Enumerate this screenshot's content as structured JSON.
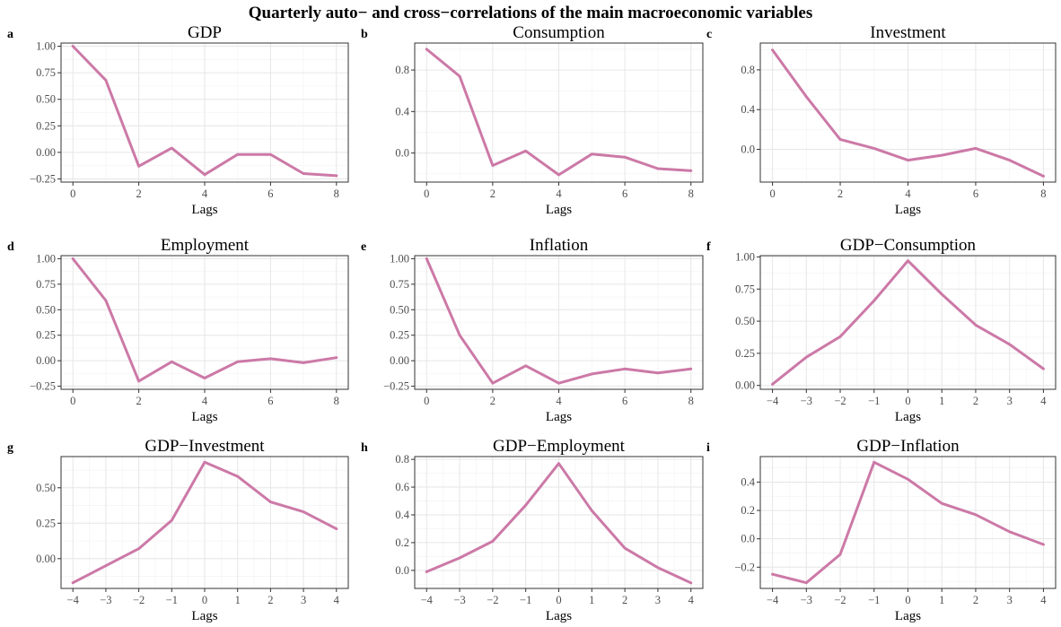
{
  "title": "Quarterly auto− and cross−correlations of the main macroeconomic variables",
  "line_color": "#cc79a7",
  "chart_data": [
    {
      "panel": "a",
      "type": "line",
      "title": "GDP",
      "xlabel": "Lags",
      "ylabel": "",
      "x": [
        0,
        1,
        2,
        3,
        4,
        5,
        6,
        7,
        8
      ],
      "values": [
        1.0,
        0.68,
        -0.13,
        0.04,
        -0.21,
        -0.02,
        -0.02,
        -0.2,
        -0.22
      ],
      "xticks": [
        0,
        2,
        4,
        6,
        8
      ],
      "xtick_labels": [
        "0",
        "2",
        "4",
        "6",
        "8"
      ],
      "yticks": [
        -0.25,
        0,
        0.25,
        0.5,
        0.75,
        1.0
      ],
      "ytick_labels": [
        "−0.25",
        "0.00",
        "0.25",
        "0.50",
        "0.75",
        "1.00"
      ],
      "ylim": [
        -0.28,
        1.03
      ],
      "grid": true
    },
    {
      "panel": "b",
      "type": "line",
      "title": "Consumption",
      "xlabel": "Lags",
      "ylabel": "",
      "x": [
        0,
        1,
        2,
        3,
        4,
        5,
        6,
        7,
        8
      ],
      "values": [
        1.0,
        0.74,
        -0.12,
        0.02,
        -0.21,
        -0.01,
        -0.04,
        -0.15,
        -0.17
      ],
      "xticks": [
        0,
        2,
        4,
        6,
        8
      ],
      "xtick_labels": [
        "0",
        "2",
        "4",
        "6",
        "8"
      ],
      "yticks": [
        0,
        0.4,
        0.8
      ],
      "ytick_labels": [
        "0.0",
        "0.4",
        "0.8"
      ],
      "ylim": [
        -0.28,
        1.06
      ],
      "grid": true
    },
    {
      "panel": "c",
      "type": "line",
      "title": "Investment",
      "xlabel": "Lags",
      "ylabel": "",
      "x": [
        0,
        1,
        2,
        3,
        4,
        5,
        6,
        7,
        8
      ],
      "values": [
        1.0,
        0.53,
        0.1,
        0.01,
        -0.11,
        -0.06,
        0.01,
        -0.11,
        -0.27
      ],
      "xticks": [
        0,
        2,
        4,
        6,
        8
      ],
      "xtick_labels": [
        "0",
        "2",
        "4",
        "6",
        "8"
      ],
      "yticks": [
        0,
        0.4,
        0.8
      ],
      "ytick_labels": [
        "0.0",
        "0.4",
        "0.8"
      ],
      "ylim": [
        -0.33,
        1.07
      ],
      "grid": true
    },
    {
      "panel": "d",
      "type": "line",
      "title": "Employment",
      "xlabel": "Lags",
      "ylabel": "",
      "x": [
        0,
        1,
        2,
        3,
        4,
        5,
        6,
        7,
        8
      ],
      "values": [
        1.0,
        0.59,
        -0.2,
        -0.01,
        -0.17,
        -0.01,
        0.02,
        -0.02,
        0.03
      ],
      "xticks": [
        0,
        2,
        4,
        6,
        8
      ],
      "xtick_labels": [
        "0",
        "2",
        "4",
        "6",
        "8"
      ],
      "yticks": [
        -0.25,
        0,
        0.25,
        0.5,
        0.75,
        1.0
      ],
      "ytick_labels": [
        "−0.25",
        "0.00",
        "0.25",
        "0.50",
        "0.75",
        "1.00"
      ],
      "ylim": [
        -0.28,
        1.03
      ],
      "grid": true
    },
    {
      "panel": "e",
      "type": "line",
      "title": "Inflation",
      "xlabel": "Lags",
      "ylabel": "",
      "x": [
        0,
        1,
        2,
        3,
        4,
        5,
        6,
        7,
        8
      ],
      "values": [
        1.0,
        0.25,
        -0.22,
        -0.05,
        -0.22,
        -0.13,
        -0.08,
        -0.12,
        -0.08
      ],
      "xticks": [
        0,
        2,
        4,
        6,
        8
      ],
      "xtick_labels": [
        "0",
        "2",
        "4",
        "6",
        "8"
      ],
      "yticks": [
        -0.25,
        0,
        0.25,
        0.5,
        0.75,
        1.0
      ],
      "ytick_labels": [
        "−0.25",
        "0.00",
        "0.25",
        "0.50",
        "0.75",
        "1.00"
      ],
      "ylim": [
        -0.28,
        1.03
      ],
      "grid": true
    },
    {
      "panel": "f",
      "type": "line",
      "title": "GDP−Consumption",
      "xlabel": "Lags",
      "ylabel": "",
      "x": [
        -4,
        -3,
        -2,
        -1,
        0,
        1,
        2,
        3,
        4
      ],
      "values": [
        0.01,
        0.22,
        0.38,
        0.66,
        0.97,
        0.71,
        0.47,
        0.32,
        0.13
      ],
      "xticks": [
        -4,
        -3,
        -2,
        -1,
        0,
        1,
        2,
        3,
        4
      ],
      "xtick_labels": [
        "−4",
        "−3",
        "−2",
        "−1",
        "0",
        "1",
        "2",
        "3",
        "4"
      ],
      "yticks": [
        0,
        0.25,
        0.5,
        0.75,
        1.0
      ],
      "ytick_labels": [
        "0.00",
        "0.25",
        "0.50",
        "0.75",
        "1.00"
      ],
      "ylim": [
        -0.03,
        1.01
      ],
      "grid": true
    },
    {
      "panel": "g",
      "type": "line",
      "title": "GDP−Investment",
      "xlabel": "Lags",
      "ylabel": "",
      "x": [
        -4,
        -3,
        -2,
        -1,
        0,
        1,
        2,
        3,
        4
      ],
      "values": [
        -0.17,
        -0.05,
        0.07,
        0.27,
        0.68,
        0.58,
        0.4,
        0.33,
        0.21
      ],
      "xticks": [
        -4,
        -3,
        -2,
        -1,
        0,
        1,
        2,
        3,
        4
      ],
      "xtick_labels": [
        "−4",
        "−3",
        "−2",
        "−1",
        "0",
        "1",
        "2",
        "3",
        "4"
      ],
      "yticks": [
        0,
        0.25,
        0.5
      ],
      "ytick_labels": [
        "0.00",
        "0.25",
        "0.50"
      ],
      "ylim": [
        -0.21,
        0.72
      ],
      "grid": true
    },
    {
      "panel": "h",
      "type": "line",
      "title": "GDP−Employment",
      "xlabel": "Lags",
      "ylabel": "",
      "x": [
        -4,
        -3,
        -2,
        -1,
        0,
        1,
        2,
        3,
        4
      ],
      "values": [
        -0.01,
        0.09,
        0.21,
        0.47,
        0.77,
        0.43,
        0.16,
        0.02,
        -0.09
      ],
      "xticks": [
        -4,
        -3,
        -2,
        -1,
        0,
        1,
        2,
        3,
        4
      ],
      "xtick_labels": [
        "−4",
        "−3",
        "−2",
        "−1",
        "0",
        "1",
        "2",
        "3",
        "4"
      ],
      "yticks": [
        0,
        0.2,
        0.4,
        0.6,
        0.8
      ],
      "ytick_labels": [
        "0.0",
        "0.2",
        "0.4",
        "0.6",
        "0.8"
      ],
      "ylim": [
        -0.13,
        0.82
      ],
      "grid": true
    },
    {
      "panel": "i",
      "type": "line",
      "title": "GDP−Inflation",
      "xlabel": "Lags",
      "ylabel": "",
      "x": [
        -4,
        -3,
        -2,
        -1,
        0,
        1,
        2,
        3,
        4
      ],
      "values": [
        -0.25,
        -0.31,
        -0.11,
        0.54,
        0.42,
        0.25,
        0.17,
        0.05,
        -0.04
      ],
      "xticks": [
        -4,
        -3,
        -2,
        -1,
        0,
        1,
        2,
        3,
        4
      ],
      "xtick_labels": [
        "−4",
        "−3",
        "−2",
        "−1",
        "0",
        "1",
        "2",
        "3",
        "4"
      ],
      "yticks": [
        -0.2,
        0,
        0.2,
        0.4
      ],
      "ytick_labels": [
        "−0.2",
        "0.0",
        "0.2",
        "0.4"
      ],
      "ylim": [
        -0.35,
        0.58
      ],
      "grid": true
    }
  ]
}
